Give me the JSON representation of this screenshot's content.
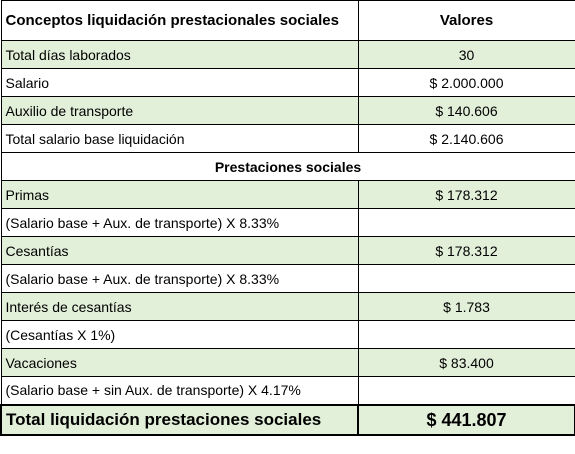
{
  "header": {
    "concept": "Conceptos liquidación prestacionales sociales",
    "value": "Valores"
  },
  "rows_base": [
    {
      "label": "Total días laborados",
      "value": "30",
      "green": true
    },
    {
      "label": "Salario",
      "value": "$ 2.000.000",
      "green": false
    },
    {
      "label": "Auxilio de transporte",
      "value": "$ 140.606",
      "green": true
    },
    {
      "label": "Total salario base liquidación",
      "value": "$ 2.140.606",
      "green": false
    }
  ],
  "section_title": "Prestaciones sociales",
  "rows_prestaciones": [
    {
      "label": "Primas",
      "value": "$ 178.312",
      "green": true
    },
    {
      "label": "(Salario base + Aux. de transporte) X 8.33%",
      "value": "",
      "green": false
    },
    {
      "label": "Cesantías",
      "value": "$ 178.312",
      "green": true
    },
    {
      "label": "(Salario base + Aux. de transporte) X 8.33%",
      "value": "",
      "green": false
    },
    {
      "label": "Interés de cesantías",
      "value": "$ 1.783",
      "green": true
    },
    {
      "label": "(Cesantías X 1%)",
      "value": "",
      "green": false
    },
    {
      "label": "Vacaciones",
      "value": "$ 83.400",
      "green": true
    },
    {
      "label": "(Salario base + sin Aux. de transporte) X 4.17%",
      "value": "",
      "green": false
    }
  ],
  "total": {
    "label": "Total liquidación prestaciones sociales",
    "value": "$ 441.807"
  }
}
